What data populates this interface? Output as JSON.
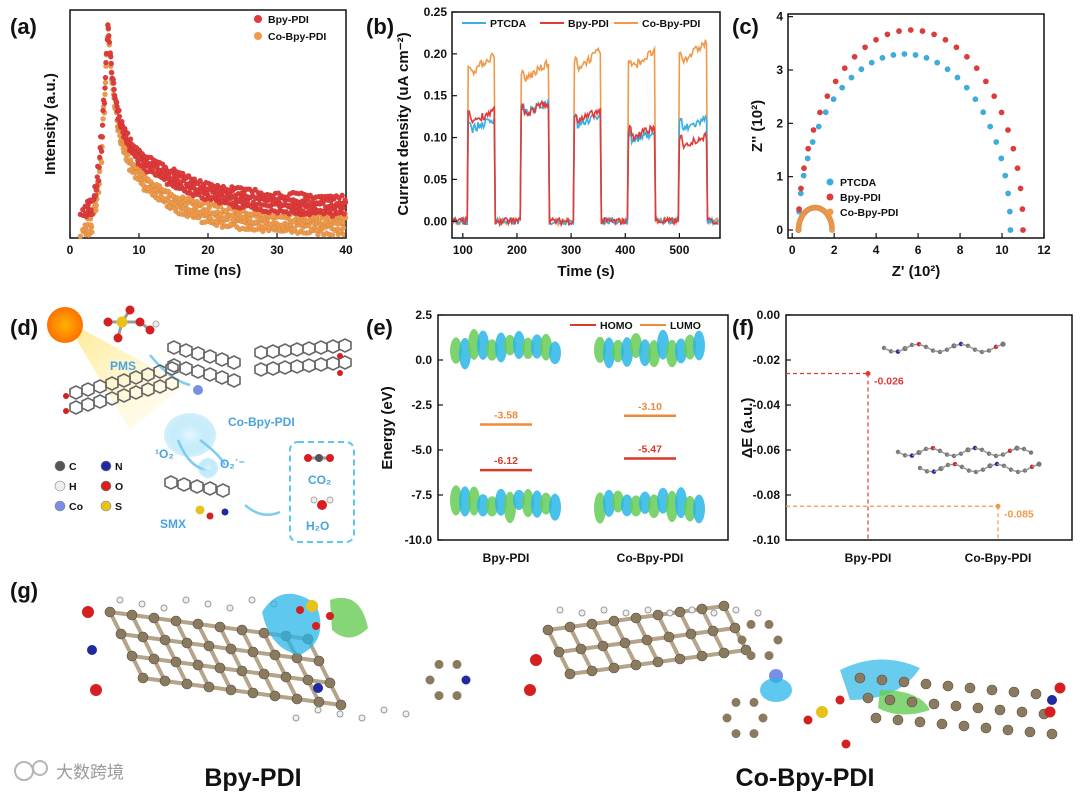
{
  "colors": {
    "ptcda": "#3aaee0",
    "bpy": "#e03a3a",
    "co": "#ef9a4a",
    "cyan": "#29b6e8",
    "green": "#66cc55",
    "homo": "#d93a2a",
    "lumo": "#ee8a3a"
  },
  "panels": {
    "a": "(a)",
    "b": "(b)",
    "c": "(c)",
    "d": "(d)",
    "e": "(e)",
    "f": "(f)",
    "g": "(g)"
  },
  "schematic": {
    "pms": "PMS",
    "product": "Co-Bpy-PDI",
    "radical1": "¹O₂",
    "radical2": "O₂˙⁻",
    "co2": "CO₂",
    "h2o": "H₂O",
    "smx": "SMX",
    "legend": [
      {
        "label": "C",
        "color": "#555555"
      },
      {
        "label": "N",
        "color": "#1e2a9e"
      },
      {
        "label": "H",
        "color": "#eeeeee"
      },
      {
        "label": "O",
        "color": "#d42020"
      },
      {
        "label": "Co",
        "color": "#7a8ee8"
      },
      {
        "label": "S",
        "color": "#e6c21a"
      }
    ]
  },
  "bottom": {
    "left": "Bpy-PDI",
    "right": "Co-Bpy-PDI",
    "watermark": "大数跨境"
  },
  "chart_data": [
    {
      "panel": "a",
      "type": "scatter",
      "xlabel": "Time (ns)",
      "ylabel": "Intensity (a.u.)",
      "xlim": [
        0,
        40
      ],
      "xticks": [
        0,
        10,
        20,
        30,
        40
      ],
      "series": [
        {
          "name": "Bpy-PDI",
          "color": "#e03a3a",
          "peak_x": 5.5,
          "tail_level": 0.18
        },
        {
          "name": "Co-Bpy-PDI",
          "color": "#ef9a4a",
          "peak_x": 5.5,
          "tail_level": 0.06
        }
      ]
    },
    {
      "panel": "b",
      "type": "line",
      "xlabel": "Time (s)",
      "ylabel": "Current density (uA cm⁻²)",
      "xlim": [
        80,
        575
      ],
      "ylim": [
        -0.02,
        0.25
      ],
      "xticks": [
        100,
        200,
        300,
        400,
        500
      ],
      "yticks": [
        "0.00",
        "0.05",
        "0.10",
        "0.15",
        "0.20",
        "0.25"
      ],
      "on_intervals": [
        [
          110,
          158
        ],
        [
          208,
          258
        ],
        [
          305,
          355
        ],
        [
          405,
          455
        ],
        [
          500,
          550
        ]
      ],
      "series": [
        {
          "name": "PTCDA",
          "color": "#3aaee0",
          "on_values": [
            0.12,
            0.14,
            0.125,
            0.105,
            0.12
          ]
        },
        {
          "name": "Bpy-PDI",
          "color": "#e03a3a",
          "on_values": [
            0.13,
            0.14,
            0.13,
            0.11,
            0.1
          ]
        },
        {
          "name": "Co-Bpy-PDI",
          "color": "#ef9a4a",
          "on_values": [
            0.195,
            0.185,
            0.2,
            0.2,
            0.21
          ]
        }
      ]
    },
    {
      "panel": "c",
      "type": "scatter",
      "xlabel": "Z' (10²)",
      "ylabel": "Z'' (10²)",
      "xlim": [
        -0.2,
        12
      ],
      "ylim": [
        -0.15,
        4.05
      ],
      "xticks": [
        0,
        2,
        4,
        6,
        8,
        10,
        12
      ],
      "yticks": [
        0,
        1,
        2,
        3,
        4
      ],
      "series": [
        {
          "name": "PTCDA",
          "color": "#3aaee0",
          "arc": [
            0.3,
            10.4,
            3.3
          ]
        },
        {
          "name": "Bpy-PDI",
          "color": "#e03a3a",
          "arc": [
            0.3,
            11.0,
            3.75
          ]
        },
        {
          "name": "Co-Bpy-PDI",
          "color": "#ef9a4a",
          "arc": [
            0.3,
            1.9,
            0.42
          ]
        }
      ]
    },
    {
      "panel": "e",
      "type": "bar",
      "ylabel": "Energy (eV)",
      "ylim": [
        -10.0,
        2.5
      ],
      "yticks": [
        "2.5",
        "0.0",
        "-2.5",
        "-5.0",
        "-7.5",
        "-10.0"
      ],
      "categories": [
        "Bpy-PDI",
        "Co-Bpy-PDI"
      ],
      "series": [
        {
          "name": "HOMO",
          "color": "#d93a2a",
          "values": [
            -6.12,
            -5.47
          ],
          "labels": [
            "-6.12",
            "-5.47"
          ]
        },
        {
          "name": "LUMO",
          "color": "#ee8a3a",
          "values": [
            -3.58,
            -3.1
          ],
          "labels": [
            "-3.58",
            "-3.10"
          ]
        }
      ]
    },
    {
      "panel": "f",
      "type": "bar",
      "ylabel": "ΔE (a.u.)",
      "ylim": [
        -0.1,
        0.0
      ],
      "yticks": [
        "0.00",
        "-0.02",
        "-0.04",
        "-0.06",
        "-0.08",
        "-0.10"
      ],
      "categories": [
        "Bpy-PDI",
        "Co-Bpy-PDI"
      ],
      "values": [
        -0.026,
        -0.085
      ],
      "labels": [
        "-0.026",
        "-0.085"
      ],
      "colors": [
        "#e03a3a",
        "#ef9a4a"
      ]
    }
  ]
}
